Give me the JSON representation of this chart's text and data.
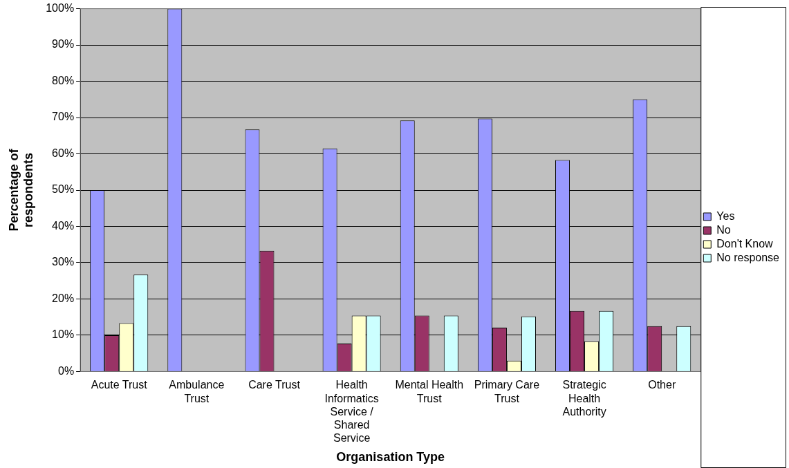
{
  "chart_data": {
    "type": "bar",
    "xlabel": "Organisation Type",
    "ylabel": "Percentage of respondents",
    "categories": [
      "Acute Trust",
      "Ambulance Trust",
      "Care Trust",
      "Health Informatics Service / Shared Service",
      "Mental Health Trust",
      "Primary Care Trust",
      "Strategic Health Authority",
      "Other"
    ],
    "series": [
      {
        "name": "Yes",
        "color": "#9999ff",
        "values": [
          50,
          100,
          66.7,
          61.5,
          69.2,
          69.7,
          58.3,
          75
        ]
      },
      {
        "name": "No",
        "color": "#993366",
        "values": [
          10,
          0,
          33.3,
          7.7,
          15.4,
          12.1,
          16.7,
          12.5
        ]
      },
      {
        "name": "Don't Know",
        "color": "#ffffcc",
        "values": [
          13.3,
          0,
          0,
          15.4,
          0,
          3,
          8.3,
          0
        ]
      },
      {
        "name": "No response",
        "color": "#ccffff",
        "values": [
          26.7,
          0,
          0,
          15.4,
          15.4,
          15.2,
          16.7,
          12.5
        ]
      }
    ],
    "ylim": [
      0,
      100
    ],
    "yticks": [
      {
        "value": 0,
        "label": "0%"
      },
      {
        "value": 10,
        "label": "10%"
      },
      {
        "value": 20,
        "label": "20%"
      },
      {
        "value": 30,
        "label": "30%"
      },
      {
        "value": 40,
        "label": "40%"
      },
      {
        "value": 50,
        "label": "50%"
      },
      {
        "value": 60,
        "label": "60%"
      },
      {
        "value": 70,
        "label": "70%"
      },
      {
        "value": 80,
        "label": "80%"
      },
      {
        "value": 90,
        "label": "90%"
      },
      {
        "value": 100,
        "label": "100%"
      }
    ],
    "grid": "y",
    "legend": "right"
  }
}
